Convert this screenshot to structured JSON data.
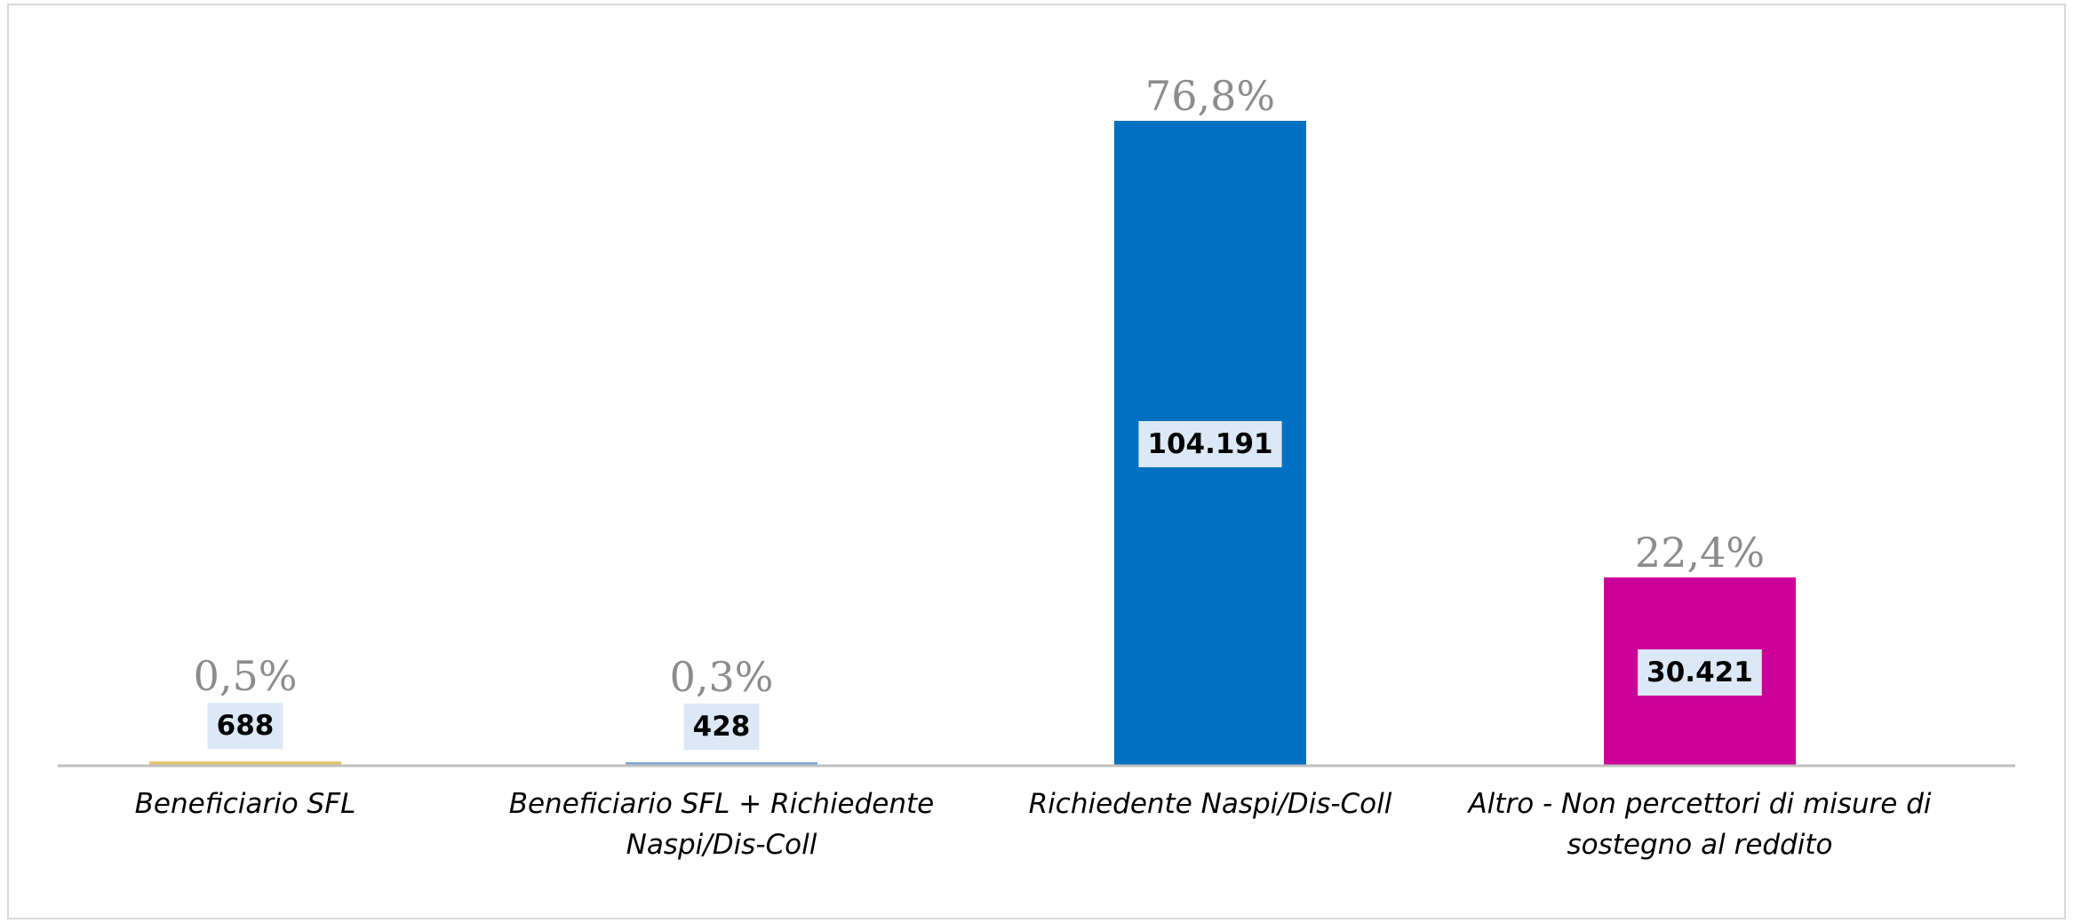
{
  "chart_data": {
    "type": "bar",
    "categories": [
      [
        "Beneficiario SFL"
      ],
      [
        "Beneficiario SFL + Richiedente",
        "Naspi/Dis-Coll"
      ],
      [
        "Richiedente Naspi/Dis-Coll"
      ],
      [
        "Altro - Non percettori di misure di",
        "sostegno al reddito"
      ]
    ],
    "values": [
      688,
      428,
      104191,
      30421
    ],
    "value_labels": [
      "688",
      "428",
      "104.191",
      "30.421"
    ],
    "percent_labels": [
      "0,5%",
      "0,3%",
      "76,8%",
      "22,4%"
    ],
    "colors": [
      "#e3c46a",
      "#7ea6d8",
      "#0070c0",
      "#cc0099"
    ],
    "ylim": [
      0,
      104191
    ],
    "title": "",
    "xlabel": "",
    "ylabel": "",
    "grid": false,
    "legend": "none",
    "value_label_box_color": "#dce8f5"
  }
}
